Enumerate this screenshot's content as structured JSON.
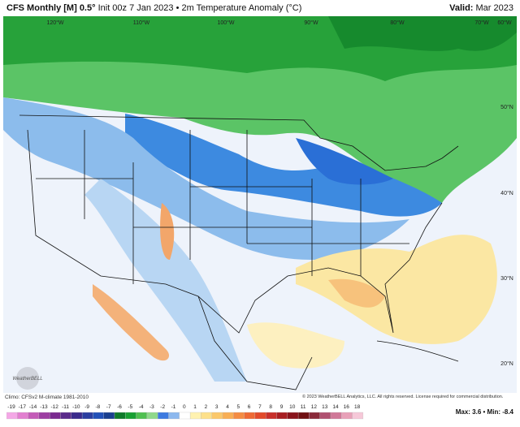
{
  "header": {
    "title": "CFS Monthly [M] 0.5°",
    "subtitle": "Init 00z 7 Jan 2023 • 2m Temperature Anomaly (°C)",
    "valid_label": "Valid:",
    "valid": "Mar 2023"
  },
  "map": {
    "longitude_labels": [
      "120°W",
      "110°W",
      "100°W",
      "90°W",
      "80°W",
      "70°W",
      "60°W"
    ],
    "latitude_labels": [
      "50°N",
      "40°N",
      "30°N",
      "20°N"
    ],
    "logo": "WeatherBELL"
  },
  "footer": {
    "climo": "Climo: CFSv2 M-climate 1981-2010",
    "copyright": "© 2023 WeatherBELL Analytics, LLC. All rights reserved. License required for commercial distribution.",
    "max_min": "Max: 3.6 • Min: -8.4"
  },
  "colorbar": {
    "labels": [
      -19,
      -17,
      -14,
      -13,
      -12,
      -11,
      -10,
      -9,
      -8,
      -7,
      -6,
      -5,
      -4,
      -3,
      -2,
      -1,
      0,
      1,
      2,
      3,
      4,
      5,
      6,
      7,
      8,
      9,
      10,
      11,
      12,
      13,
      14,
      16,
      18
    ]
  }
}
